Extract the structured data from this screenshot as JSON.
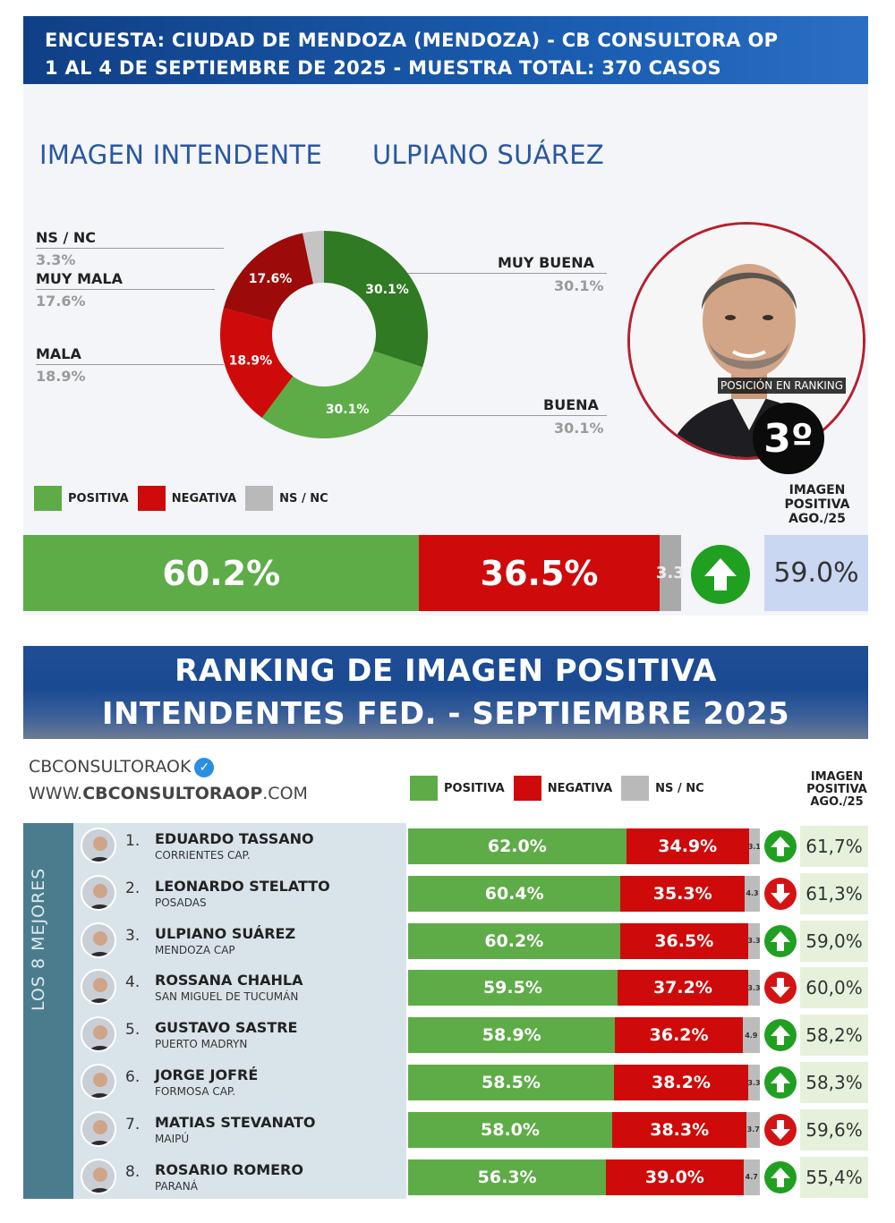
{
  "header": {
    "line1": "ENCUESTA: CIUDAD DE MENDOZA (MENDOZA) - CB CONSULTORA OP",
    "line2": "1 AL 4 DE SEPTIEMBRE DE 2025 - MUESTRA TOTAL: 370 CASOS"
  },
  "section": {
    "title": "IMAGEN INTENDENTE",
    "name": "ULPIANO SUÁREZ"
  },
  "ranking_badge": {
    "label": "POSICIÓN EN RANKING",
    "value": "3º"
  },
  "legend": {
    "positive": "POSITIVA",
    "negative": "NEGATIVA",
    "nsnc": "NS / NC"
  },
  "colors": {
    "positive": "#5eac47",
    "positive_dark": "#2f7a22",
    "negative": "#cf0a0a",
    "negative_dark": "#9c0a0a",
    "nsnc": "#b9b9b9",
    "up": "#20a020",
    "down": "#d41414"
  },
  "chart_data": [
    {
      "type": "pie",
      "title": "IMAGEN INTENDENTE",
      "slices": [
        {
          "label": "MUY BUENA",
          "value": 30.1,
          "display": "30.1%",
          "color": "#2f7a22"
        },
        {
          "label": "BUENA",
          "value": 30.1,
          "display": "30.1%",
          "color": "#5eac47"
        },
        {
          "label": "MALA",
          "value": 18.9,
          "display": "18.9%",
          "color": "#cf0a0a"
        },
        {
          "label": "MUY MALA",
          "value": 17.6,
          "display": "17.6%",
          "color": "#9c0a0a"
        },
        {
          "label": "NS / NC",
          "value": 3.3,
          "display": "3.3%",
          "color": "#c4c4c4"
        }
      ]
    },
    {
      "type": "bar",
      "stacked": true,
      "orientation": "horizontal",
      "series": [
        {
          "name": "POSITIVA",
          "values": [
            60.2
          ]
        },
        {
          "name": "NEGATIVA",
          "values": [
            36.5
          ]
        },
        {
          "name": "NS / NC",
          "values": [
            3.3
          ]
        }
      ],
      "labels": {
        "positive": "60.2%",
        "negative": "36.5%",
        "nsnc": "3.3"
      },
      "trend": "up",
      "previous_header": "IMAGEN POSITIVA AGO./25",
      "previous_value": "59.0%"
    },
    {
      "type": "bar",
      "stacked": true,
      "orientation": "horizontal",
      "title": "RANKING DE IMAGEN POSITIVA INTENDENTES FED. - SEPTIEMBRE 2025",
      "series_names": [
        "POSITIVA",
        "NEGATIVA",
        "NS / NC"
      ],
      "rows": [
        {
          "rank": "1.",
          "name": "EDUARDO TASSANO",
          "city": "CORRIENTES CAP.",
          "positive": 62.0,
          "negative": 34.9,
          "nsnc": 3.1,
          "pos_label": "62.0%",
          "neg_label": "34.9%",
          "ns_label": "3.1",
          "trend": "up",
          "prev": "61,7%"
        },
        {
          "rank": "2.",
          "name": "LEONARDO STELATTO",
          "city": "POSADAS",
          "positive": 60.4,
          "negative": 35.3,
          "nsnc": 4.3,
          "pos_label": "60.4%",
          "neg_label": "35.3%",
          "ns_label": "4.3",
          "trend": "down",
          "prev": "61,3%"
        },
        {
          "rank": "3.",
          "name": "ULPIANO SUÁREZ",
          "city": "MENDOZA CAP",
          "positive": 60.2,
          "negative": 36.5,
          "nsnc": 3.3,
          "pos_label": "60.2%",
          "neg_label": "36.5%",
          "ns_label": "3.3",
          "trend": "up",
          "prev": "59,0%"
        },
        {
          "rank": "4.",
          "name": "ROSSANA CHAHLA",
          "city": "SAN MIGUEL DE TUCUMÁN",
          "positive": 59.5,
          "negative": 37.2,
          "nsnc": 3.3,
          "pos_label": "59.5%",
          "neg_label": "37.2%",
          "ns_label": "3.3",
          "trend": "down",
          "prev": "60,0%"
        },
        {
          "rank": "5.",
          "name": "GUSTAVO SASTRE",
          "city": "PUERTO MADRYN",
          "positive": 58.9,
          "negative": 36.2,
          "nsnc": 4.9,
          "pos_label": "58.9%",
          "neg_label": "36.2%",
          "ns_label": "4.9",
          "trend": "up",
          "prev": "58,2%"
        },
        {
          "rank": "6.",
          "name": "JORGE JOFRÉ",
          "city": "FORMOSA CAP.",
          "positive": 58.5,
          "negative": 38.2,
          "nsnc": 3.3,
          "pos_label": "58.5%",
          "neg_label": "38.2%",
          "ns_label": "3.3",
          "trend": "up",
          "prev": "58,3%"
        },
        {
          "rank": "7.",
          "name": "MATIAS STEVANATO",
          "city": "MAIPÚ",
          "positive": 58.0,
          "negative": 38.3,
          "nsnc": 3.7,
          "pos_label": "58.0%",
          "neg_label": "38.3%",
          "ns_label": "3.7",
          "trend": "down",
          "prev": "59,6%"
        },
        {
          "rank": "8.",
          "name": "ROSARIO ROMERO",
          "city": "PARANÁ",
          "positive": 56.3,
          "negative": 39.0,
          "nsnc": 4.7,
          "pos_label": "56.3%",
          "neg_label": "39.0%",
          "ns_label": "4.7",
          "trend": "up",
          "prev": "55,4%"
        }
      ]
    }
  ],
  "ranking": {
    "title_line1": "RANKING DE IMAGEN POSITIVA",
    "title_line2": "INTENDENTES FED. - SEPTIEMBRE 2025",
    "brand": "CBCONSULTORAOK",
    "website_prefix": "WWW.",
    "website_bold": "CBCONSULTORAOP",
    "website_suffix": ".COM",
    "side_label": "LOS 8 MEJORES",
    "prev_header_l1": "IMAGEN",
    "prev_header_l2": "POSITIVA",
    "prev_header_l3": "AGO./25"
  },
  "top_prev_header": {
    "l1": "IMAGEN",
    "l2": "POSITIVA",
    "l3": "AGO./25"
  }
}
